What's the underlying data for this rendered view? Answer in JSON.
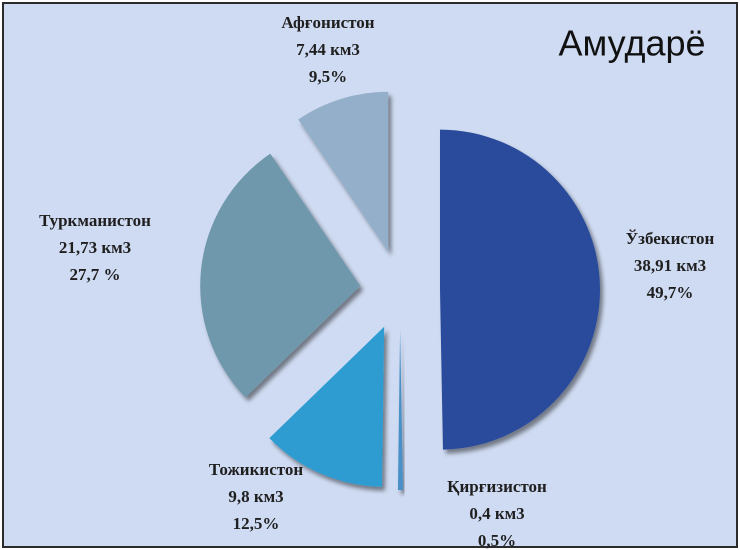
{
  "chart_data": {
    "type": "pie",
    "title": "Амударё",
    "categories": [
      "Ўзбекистон",
      "Қирғизистон",
      "Тожикистон",
      "Туркманистон",
      "Афғонистон"
    ],
    "values": [
      38.91,
      0.4,
      9.8,
      21.73,
      7.44
    ],
    "value_labels": [
      "38,91 км3",
      "0,4 км3",
      "9,8 км3",
      "21,73 км3",
      "7,44 км3"
    ],
    "percents": [
      49.7,
      0.5,
      12.5,
      27.7,
      9.5
    ],
    "percent_labels": [
      "49,7%",
      "0,5%",
      "12,5%",
      "27,7 %",
      "9,5%"
    ],
    "colors": [
      "#2a4b9b",
      "#4a90c8",
      "#2f9bd1",
      "#6f98ac",
      "#94afca"
    ]
  }
}
